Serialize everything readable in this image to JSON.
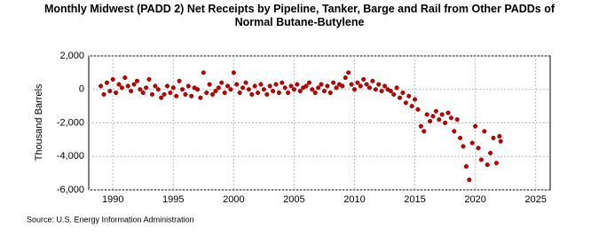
{
  "chart_data": {
    "type": "scatter",
    "title": "Monthly Midwest (PADD 2) Net Receipts by Pipeline, Tanker, Barge and Rail from Other PADDs of Normal Butane-Butylene",
    "y_label": "Thousand Barrels",
    "source": "Source: U.S. Energy Information Administration",
    "color": "#c00000",
    "grid": true,
    "xlim": [
      1988,
      2026.2
    ],
    "xticks": [
      1990,
      1995,
      2000,
      2005,
      2010,
      2015,
      2020,
      2025
    ],
    "ylim": [
      -6000,
      2000
    ],
    "yticks": [
      {
        "value": 2000,
        "label": "2,000"
      },
      0,
      {
        "value": -2000,
        "label": "-2,000"
      },
      {
        "value": -4000,
        "label": "-4,000"
      },
      {
        "value": -6000,
        "label": "-6,000"
      }
    ],
    "x": [
      1989,
      1989.25,
      1989.5,
      1989.75,
      1990,
      1990.25,
      1990.5,
      1990.75,
      1991,
      1991.25,
      1991.5,
      1991.75,
      1992,
      1992.25,
      1992.5,
      1992.75,
      1993,
      1993.25,
      1993.5,
      1993.75,
      1994,
      1994.25,
      1994.5,
      1994.75,
      1995,
      1995.25,
      1995.5,
      1995.75,
      1996,
      1996.25,
      1996.5,
      1996.75,
      1997,
      1997.25,
      1997.5,
      1997.75,
      1998,
      1998.25,
      1998.5,
      1998.75,
      1999,
      1999.25,
      1999.5,
      1999.75,
      2000,
      2000.25,
      2000.5,
      2000.75,
      2001,
      2001.25,
      2001.5,
      2001.75,
      2002,
      2002.25,
      2002.5,
      2002.75,
      2003,
      2003.25,
      2003.5,
      2003.75,
      2004,
      2004.25,
      2004.5,
      2004.75,
      2005,
      2005.25,
      2005.5,
      2005.75,
      2006,
      2006.25,
      2006.5,
      2006.75,
      2007,
      2007.25,
      2007.5,
      2007.75,
      2008,
      2008.25,
      2008.5,
      2008.75,
      2009,
      2009.25,
      2009.5,
      2009.75,
      2010,
      2010.25,
      2010.5,
      2010.75,
      2011,
      2011.25,
      2011.5,
      2011.75,
      2012,
      2012.25,
      2012.5,
      2012.75,
      2013,
      2013.25,
      2013.5,
      2013.75,
      2014,
      2014.25,
      2014.5,
      2014.75,
      2015,
      2015.25,
      2015.5,
      2015.75,
      2016,
      2016.25,
      2016.5,
      2016.75,
      2017,
      2017.25,
      2017.5,
      2017.75,
      2018,
      2018.25,
      2018.5,
      2018.75,
      2019,
      2019.25,
      2019.5,
      2019.75,
      2020,
      2020.25,
      2020.5,
      2020.75,
      2021,
      2021.25,
      2021.5,
      2021.75,
      2022,
      2022.1
    ],
    "values": [
      200,
      -300,
      400,
      -100,
      600,
      -200,
      300,
      100,
      700,
      200,
      -100,
      300,
      500,
      0,
      -200,
      100,
      600,
      -300,
      200,
      0,
      -500,
      -300,
      200,
      -200,
      100,
      -400,
      500,
      0,
      -300,
      200,
      -400,
      100,
      0,
      -500,
      1000,
      -200,
      300,
      -300,
      -100,
      100,
      400,
      -200,
      200,
      0,
      1000,
      300,
      -200,
      100,
      400,
      0,
      -300,
      200,
      -200,
      300,
      0,
      -300,
      200,
      -100,
      300,
      -200,
      400,
      100,
      -200,
      200,
      0,
      300,
      -100,
      100,
      200,
      400,
      0,
      -200,
      100,
      300,
      -100,
      200,
      -200,
      400,
      100,
      300,
      200,
      700,
      1000,
      300,
      0,
      400,
      200,
      600,
      300,
      100,
      500,
      0,
      300,
      -100,
      200,
      0,
      -100,
      -300,
      100,
      -500,
      -200,
      -800,
      -400,
      -1000,
      -600,
      -1200,
      -2200,
      -2500,
      -1500,
      -1900,
      -1600,
      -1300,
      -1800,
      -1500,
      -2000,
      -1400,
      -1700,
      -2500,
      -1800,
      -2900,
      -3400,
      -4600,
      -5400,
      -3200,
      -2200,
      -3500,
      -4200,
      -2500,
      -4500,
      -3800,
      -2900,
      -4400,
      -2800,
      -3100
    ]
  }
}
